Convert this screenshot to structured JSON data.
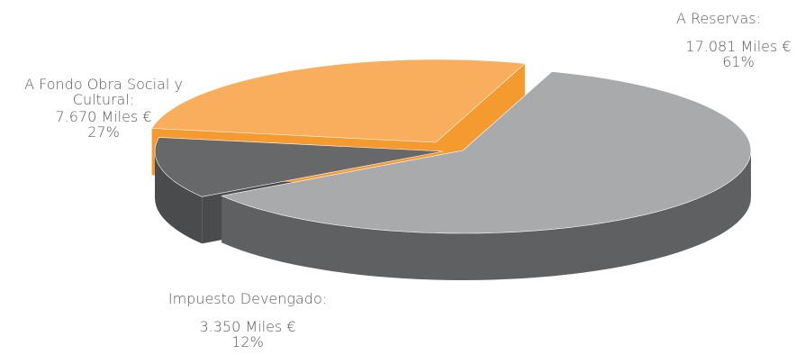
{
  "chart_data": {
    "type": "pie",
    "style": "3d-exploded",
    "slices": [
      {
        "name": "A Reservas:",
        "amount": "17.081 Miles €",
        "percent_label": "61%",
        "value": 17081,
        "percent": 61,
        "color_top": "#a9aaac",
        "color_side": "#5f6062"
      },
      {
        "name": "Impuesto Devengado:",
        "amount": "3.350 Miles €",
        "percent_label": "12%",
        "value": 3350,
        "percent": 12,
        "color_top": "#67686a",
        "color_side": "#4a4b4d"
      },
      {
        "name_line1": "A Fondo Obra Social y",
        "name_line2": "Cultural:",
        "amount": "7.670 Miles €",
        "percent_label": "27%",
        "value": 7670,
        "percent": 27,
        "color_top": "#f9ae5d",
        "color_side": "#f49a2e"
      }
    ]
  }
}
